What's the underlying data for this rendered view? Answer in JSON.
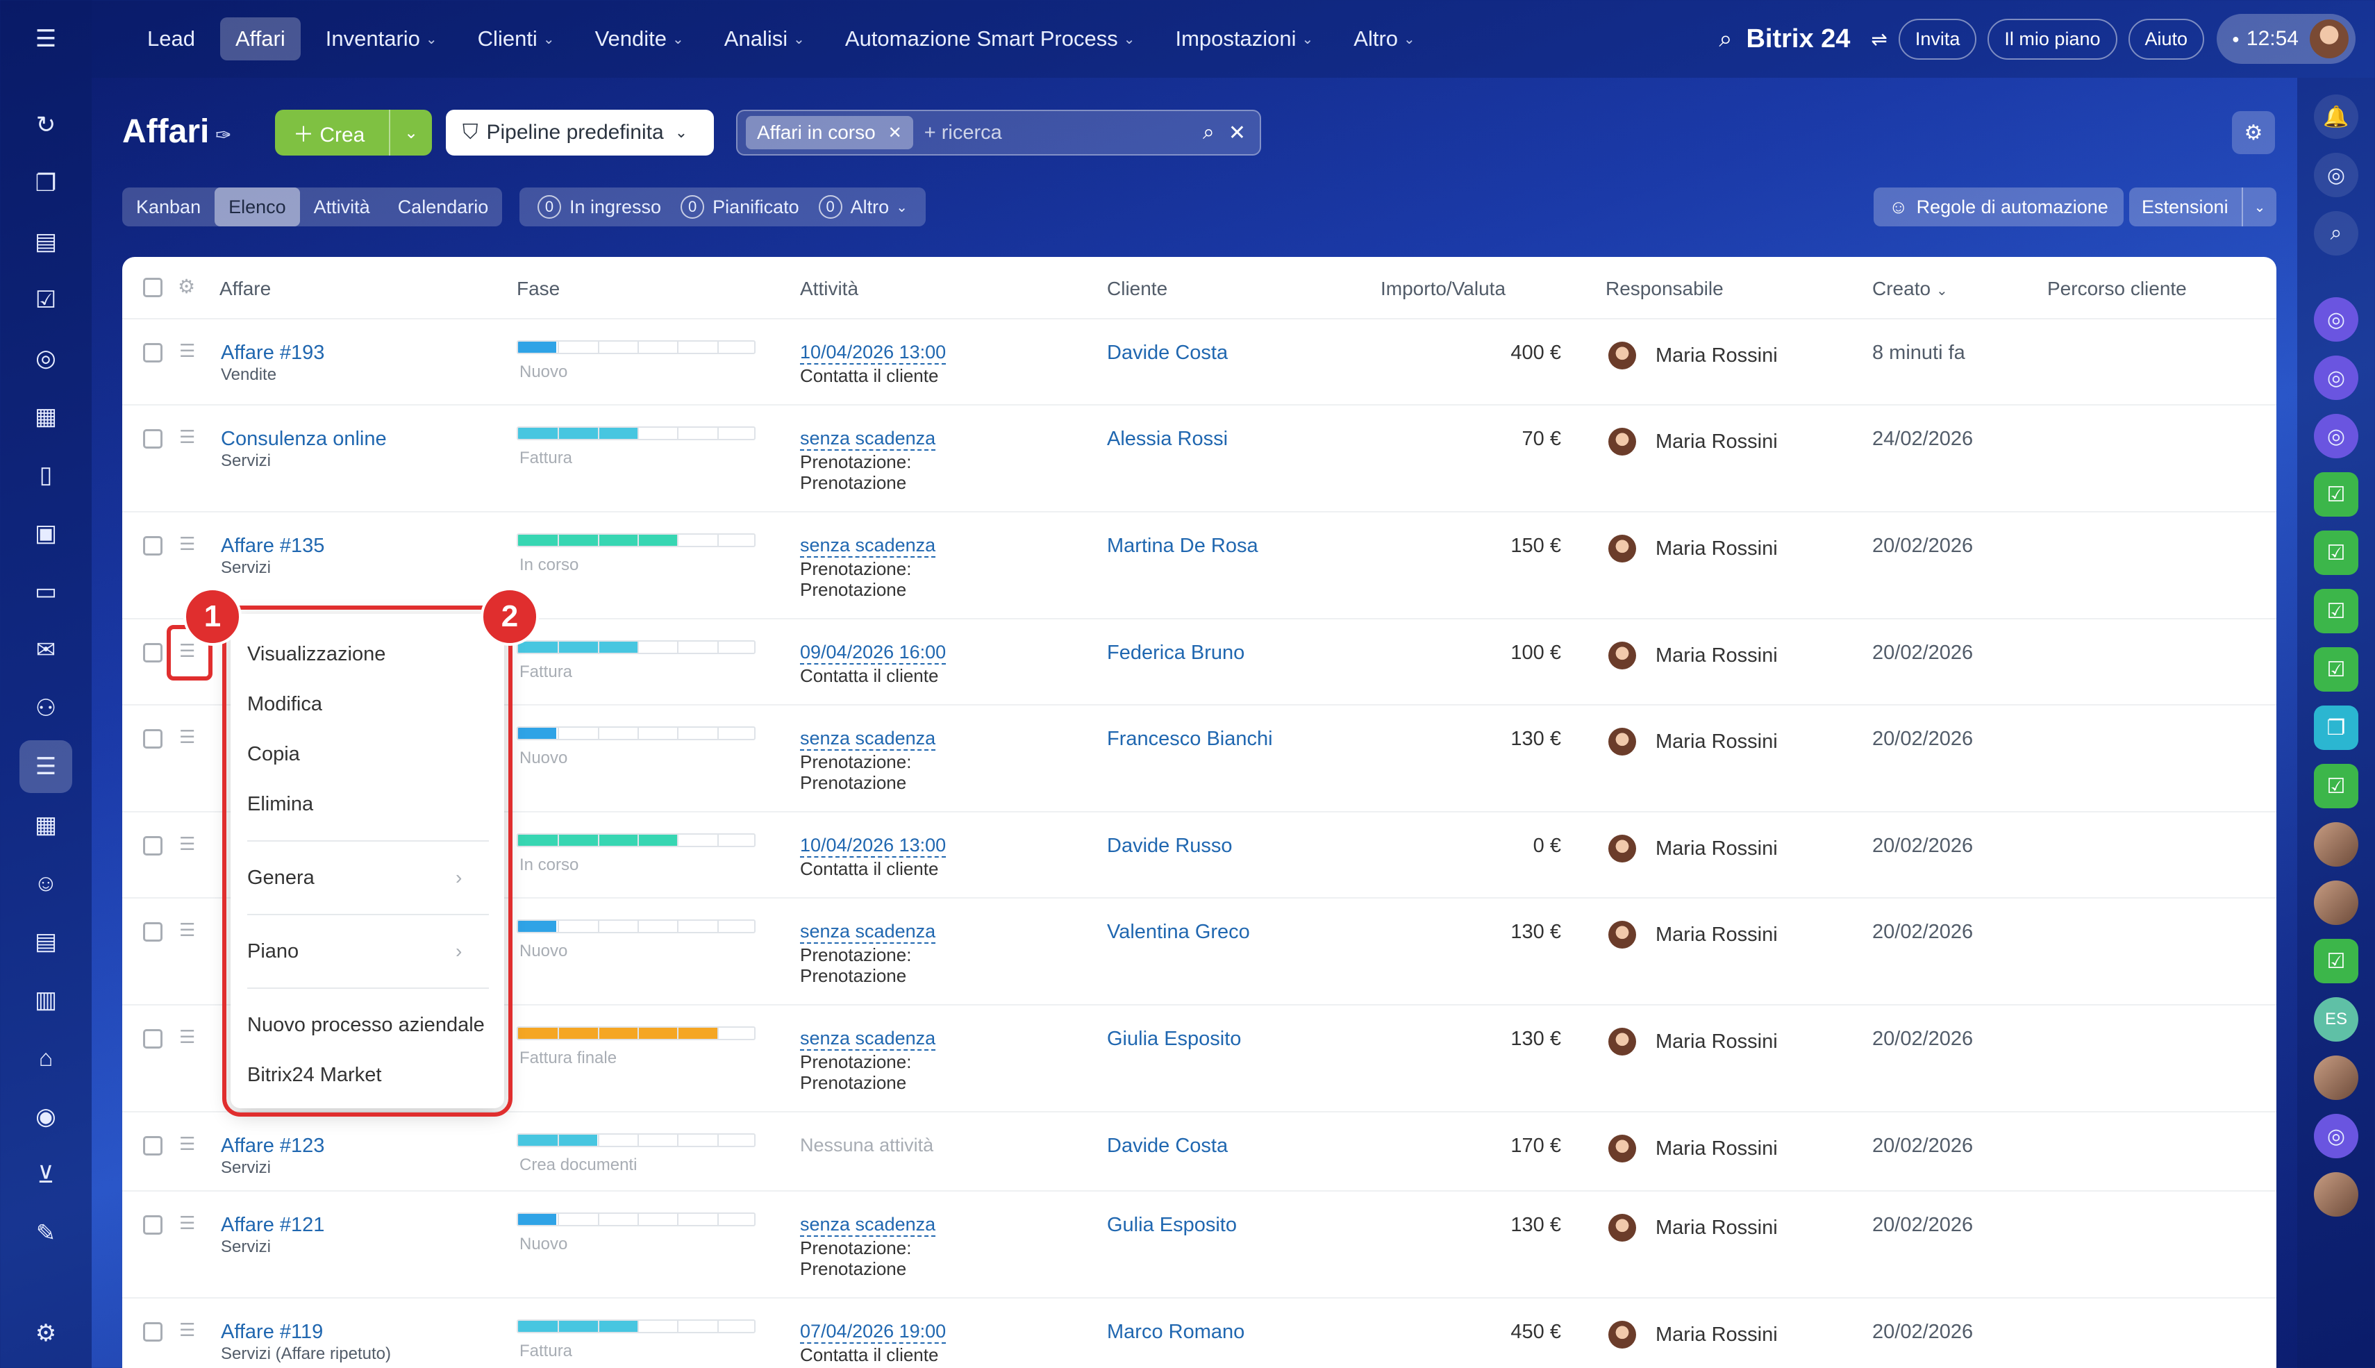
{
  "topnav": {
    "items": [
      "Lead",
      "Affari",
      "Inventario",
      "Clienti",
      "Vendite",
      "Analisi",
      "Automazione Smart Process",
      "Impostazioni",
      "Altro"
    ],
    "brand": "Bitrix 24",
    "invite": "Invita",
    "plan": "Il mio piano",
    "help": "Aiuto",
    "clock": "12:54"
  },
  "header": {
    "title": "Affari",
    "create": "Crea",
    "pipeline": "Pipeline predefinita",
    "filter_chip": "Affari in corso",
    "search_placeholder": "+ ricerca"
  },
  "views": {
    "tabs": [
      "Kanban",
      "Elenco",
      "Attività",
      "Calendario"
    ],
    "active": "Elenco",
    "counters": [
      {
        "num": "0",
        "label": "In ingresso"
      },
      {
        "num": "0",
        "label": "Pianificato"
      },
      {
        "num": "0",
        "label": "Altro"
      }
    ],
    "automation": "Regole di automazione",
    "extensions": "Estensioni"
  },
  "table": {
    "columns": [
      "Affare",
      "Fase",
      "Attività",
      "Cliente",
      "Importo/Valuta",
      "Responsabile",
      "Creato",
      "Percorso cliente"
    ],
    "rows": [
      {
        "deal": "Affare #193",
        "sub": "Vendite",
        "stage": "Nuovo",
        "progress": 0.16,
        "color": "#2fa3e6",
        "act1": "10/04/2026 13:00",
        "act2": "Contatta il cliente",
        "act3": "",
        "client": "Davide Costa",
        "amount": "400 €",
        "resp": "Maria Rossini",
        "created": "8 minuti fa"
      },
      {
        "deal": "Consulenza online",
        "sub": "Servizi",
        "stage": "Fattura",
        "progress": 0.5,
        "color": "#47c6e0",
        "act1": "senza scadenza",
        "act2": "Prenotazione:",
        "act3": "Prenotazione",
        "client": "Alessia Rossi",
        "amount": "70 €",
        "resp": "Maria Rossini",
        "created": "24/02/2026"
      },
      {
        "deal": "Affare #135",
        "sub": "Servizi",
        "stage": "In corso",
        "progress": 0.67,
        "color": "#37d6b2",
        "act1": "senza scadenza",
        "act2": "Prenotazione:",
        "act3": "Prenotazione",
        "client": "Martina De Rosa",
        "amount": "150 €",
        "resp": "Maria Rossini",
        "created": "20/02/2026"
      },
      {
        "deal": "",
        "sub": "",
        "stage": "Fattura",
        "progress": 0.5,
        "color": "#47c6e0",
        "act1": "09/04/2026 16:00",
        "act2": "Contatta il cliente",
        "act3": "",
        "client": "Federica Bruno",
        "amount": "100 €",
        "resp": "Maria Rossini",
        "created": "20/02/2026"
      },
      {
        "deal": "",
        "sub": "",
        "stage": "Nuovo",
        "progress": 0.16,
        "color": "#2fa3e6",
        "act1": "senza scadenza",
        "act2": "Prenotazione:",
        "act3": "Prenotazione",
        "client": "Francesco Bianchi",
        "amount": "130 €",
        "resp": "Maria Rossini",
        "created": "20/02/2026"
      },
      {
        "deal": "",
        "sub": "",
        "stage": "In corso",
        "progress": 0.67,
        "color": "#37d6b2",
        "act1": "10/04/2026 13:00",
        "act2": "Contatta il cliente",
        "act3": "",
        "client": "Davide Russo",
        "amount": "0 €",
        "resp": "Maria Rossini",
        "created": "20/02/2026"
      },
      {
        "deal": "",
        "sub": "",
        "stage": "Nuovo",
        "progress": 0.16,
        "color": "#2fa3e6",
        "act1": "senza scadenza",
        "act2": "Prenotazione:",
        "act3": "Prenotazione",
        "client": "Valentina Greco",
        "amount": "130 €",
        "resp": "Maria Rossini",
        "created": "20/02/2026"
      },
      {
        "deal": "",
        "sub": "",
        "stage": "Fattura finale",
        "progress": 0.84,
        "color": "#f5a623",
        "act1": "senza scadenza",
        "act2": "Prenotazione:",
        "act3": "Prenotazione",
        "client": "Giulia Esposito",
        "amount": "130 €",
        "resp": "Maria Rossini",
        "created": "20/02/2026"
      },
      {
        "deal": "Affare #123",
        "sub": "Servizi",
        "stage": "Crea documenti",
        "progress": 0.33,
        "color": "#47c6e0",
        "act1": "",
        "act2": "",
        "act3": "",
        "act_none": "Nessuna attività",
        "client": "Davide Costa",
        "amount": "170 €",
        "resp": "Maria Rossini",
        "created": "20/02/2026"
      },
      {
        "deal": "Affare #121",
        "sub": "Servizi",
        "stage": "Nuovo",
        "progress": 0.16,
        "color": "#2fa3e6",
        "act1": "senza scadenza",
        "act2": "Prenotazione:",
        "act3": "Prenotazione",
        "client": "Gulia Esposito",
        "amount": "130 €",
        "resp": "Maria Rossini",
        "created": "20/02/2026"
      },
      {
        "deal": "Affare #119",
        "sub": "Servizi (Affare ripetuto)",
        "stage": "Fattura",
        "progress": 0.5,
        "color": "#47c6e0",
        "act1": "07/04/2026 19:00",
        "act2": "Contatta il cliente",
        "act3": "",
        "client": "Marco Romano",
        "amount": "450 €",
        "resp": "Maria Rossini",
        "created": "20/02/2026"
      }
    ]
  },
  "context_menu": {
    "items": [
      "Visualizzazione",
      "Modifica",
      "Copia",
      "Elimina",
      "Genera",
      "Piano",
      "Nuovo processo aziendale",
      "Bitrix24 Market"
    ]
  },
  "badges": [
    "1",
    "2"
  ]
}
